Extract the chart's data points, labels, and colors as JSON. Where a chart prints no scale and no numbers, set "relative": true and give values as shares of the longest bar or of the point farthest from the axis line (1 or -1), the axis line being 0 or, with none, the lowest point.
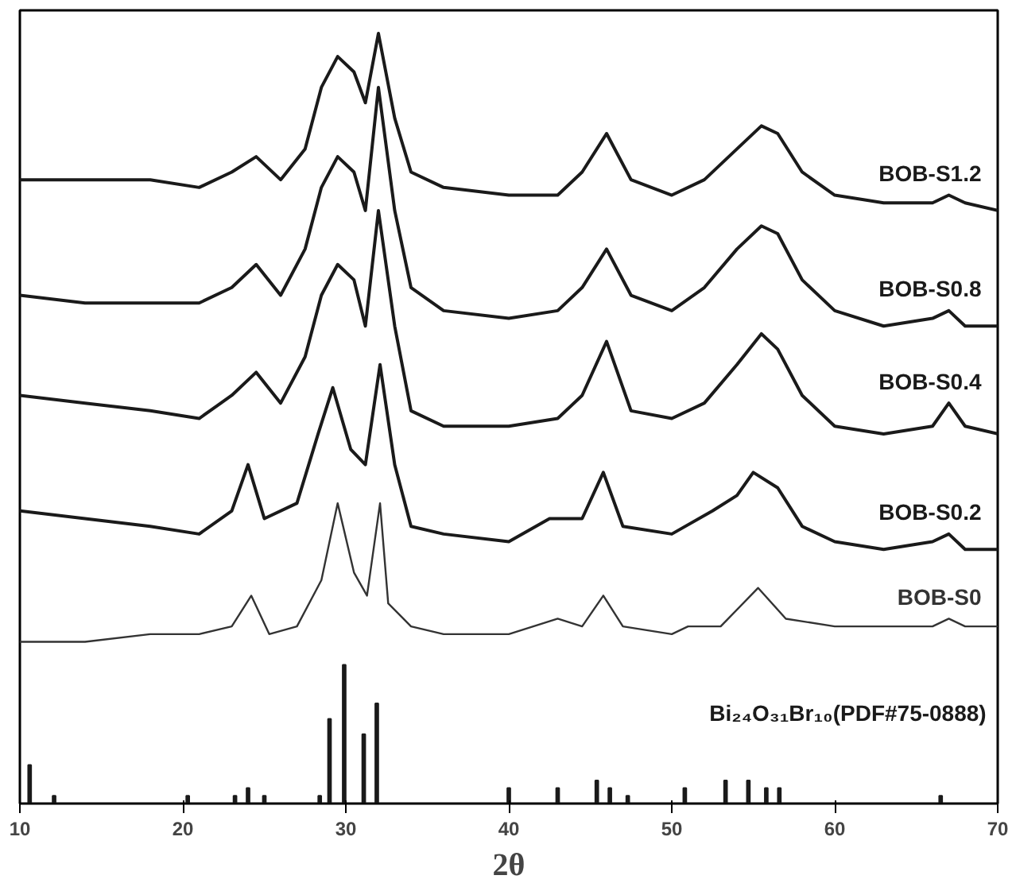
{
  "chart_data": {
    "type": "line",
    "xlabel": "2θ",
    "relative": true,
    "xlim": [
      10,
      70
    ],
    "xticks": [
      10,
      20,
      30,
      40,
      50,
      60,
      70
    ],
    "grid": false,
    "legend": false,
    "marker": "none",
    "line_style": "solid",
    "series": [
      {
        "name": "BOB-S1.2",
        "color": "#1a1a1a",
        "x": [
          10,
          14,
          18,
          21,
          23,
          24.5,
          26,
          27.5,
          28.5,
          29.5,
          30.5,
          31.2,
          32,
          33,
          34,
          36,
          40,
          43,
          44.5,
          46,
          47.5,
          50,
          52,
          54,
          55.5,
          56.5,
          58,
          60,
          63,
          66,
          67,
          68,
          70
        ],
        "values": [
          0.81,
          0.81,
          0.81,
          0.8,
          0.82,
          0.84,
          0.81,
          0.85,
          0.93,
          0.97,
          0.95,
          0.91,
          1.0,
          0.89,
          0.82,
          0.8,
          0.79,
          0.79,
          0.82,
          0.87,
          0.81,
          0.79,
          0.81,
          0.85,
          0.88,
          0.87,
          0.82,
          0.79,
          0.78,
          0.78,
          0.79,
          0.78,
          0.77
        ]
      },
      {
        "name": "BOB-S0.8",
        "color": "#1a1a1a",
        "x": [
          10,
          14,
          18,
          21,
          23,
          24.5,
          26,
          27.5,
          28.5,
          29.5,
          30.5,
          31.2,
          32,
          33,
          34,
          36,
          40,
          43,
          44.5,
          46,
          47.5,
          50,
          52,
          54,
          55.5,
          56.5,
          58,
          60,
          63,
          66,
          67,
          68,
          70
        ],
        "values": [
          0.66,
          0.65,
          0.65,
          0.65,
          0.67,
          0.7,
          0.66,
          0.72,
          0.8,
          0.84,
          0.82,
          0.77,
          0.93,
          0.77,
          0.67,
          0.64,
          0.63,
          0.64,
          0.67,
          0.72,
          0.66,
          0.64,
          0.67,
          0.72,
          0.75,
          0.74,
          0.68,
          0.64,
          0.62,
          0.63,
          0.64,
          0.62,
          0.62
        ]
      },
      {
        "name": "BOB-S0.4",
        "color": "#1a1a1a",
        "x": [
          10,
          14,
          18,
          21,
          23,
          24.5,
          26,
          27.5,
          28.5,
          29.5,
          30.5,
          31.2,
          32,
          33,
          34,
          36,
          40,
          43,
          44.5,
          46,
          47.5,
          50,
          52,
          54,
          55.5,
          56.5,
          58,
          60,
          63,
          66,
          67,
          68,
          70
        ],
        "values": [
          0.53,
          0.52,
          0.51,
          0.5,
          0.53,
          0.56,
          0.52,
          0.58,
          0.66,
          0.7,
          0.68,
          0.62,
          0.77,
          0.62,
          0.51,
          0.49,
          0.49,
          0.5,
          0.53,
          0.6,
          0.51,
          0.5,
          0.52,
          0.57,
          0.61,
          0.59,
          0.53,
          0.49,
          0.48,
          0.49,
          0.52,
          0.49,
          0.48
        ]
      },
      {
        "name": "BOB-S0.2",
        "color": "#1a1a1a",
        "x": [
          10,
          14,
          18,
          21,
          23,
          24,
          25,
          27,
          28.3,
          29.2,
          30.3,
          31.2,
          32.1,
          33,
          34,
          36,
          40,
          42.5,
          44.5,
          45.8,
          47,
          50,
          52.5,
          54,
          55,
          56.5,
          58,
          60,
          63,
          66,
          67,
          68,
          70
        ],
        "values": [
          0.38,
          0.37,
          0.36,
          0.35,
          0.38,
          0.44,
          0.37,
          0.39,
          0.48,
          0.54,
          0.46,
          0.44,
          0.57,
          0.44,
          0.36,
          0.35,
          0.34,
          0.37,
          0.37,
          0.43,
          0.36,
          0.35,
          0.38,
          0.4,
          0.43,
          0.41,
          0.36,
          0.34,
          0.33,
          0.34,
          0.35,
          0.33,
          0.33
        ]
      },
      {
        "name": "BOB-S0",
        "color": "#333333",
        "x": [
          10,
          14,
          18,
          21,
          23,
          24.2,
          25.3,
          27,
          28.5,
          29.5,
          30.5,
          31.3,
          32.1,
          32.6,
          34,
          36,
          40,
          43,
          44.5,
          45.8,
          47,
          50,
          51,
          53,
          55.3,
          57,
          60,
          63,
          66,
          67,
          68,
          70
        ],
        "values": [
          0.21,
          0.21,
          0.22,
          0.22,
          0.23,
          0.27,
          0.22,
          0.23,
          0.29,
          0.39,
          0.3,
          0.27,
          0.39,
          0.26,
          0.23,
          0.22,
          0.22,
          0.24,
          0.23,
          0.27,
          0.23,
          0.22,
          0.23,
          0.23,
          0.28,
          0.24,
          0.23,
          0.23,
          0.23,
          0.24,
          0.23,
          0.23
        ]
      },
      {
        "name": "Bi₂₄O₃₁Br₁₀(PDF#75-0888)",
        "type": "bar",
        "color": "#1a1a1a",
        "x": [
          10.6,
          12.1,
          20.3,
          23.2,
          24,
          25,
          28.4,
          29,
          29.9,
          31.1,
          31.9,
          40,
          43,
          45.4,
          46.2,
          47.3,
          50.8,
          53.3,
          54.7,
          55.8,
          56.6,
          66.5
        ],
        "values": [
          0.05,
          0.01,
          0.01,
          0.01,
          0.02,
          0.01,
          0.01,
          0.11,
          0.18,
          0.09,
          0.13,
          0.02,
          0.02,
          0.03,
          0.02,
          0.01,
          0.02,
          0.03,
          0.03,
          0.02,
          0.02,
          0.01
        ]
      }
    ]
  }
}
